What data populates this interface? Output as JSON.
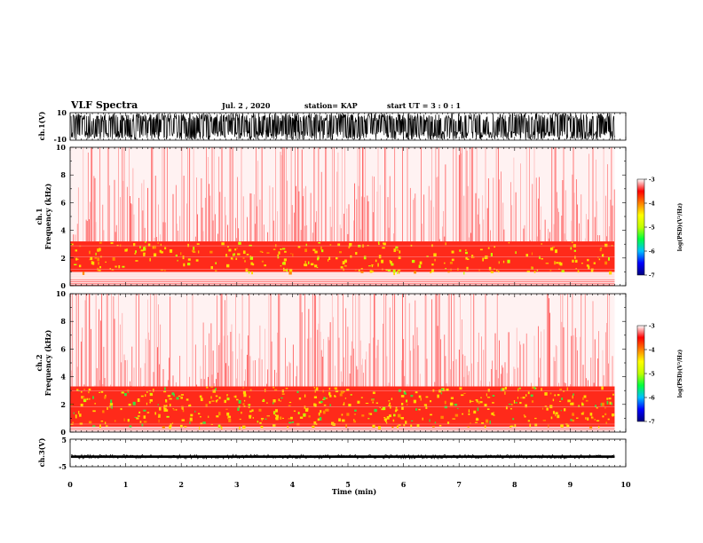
{
  "chart_data": {
    "type": "heatmap",
    "header": {
      "title": "VLF Spectra",
      "date": "Jul. 2 , 2020",
      "station": "station= KAP",
      "start": "start UT =  3 : 0  : 1"
    },
    "xlabel": "Time  (min)",
    "xlim": [
      0,
      10
    ],
    "xticks": [
      "0",
      "1",
      "2",
      "3",
      "4",
      "5",
      "6",
      "7",
      "8",
      "9",
      "10"
    ],
    "data_end_min": 9.8,
    "panels": [
      {
        "kind": "waveform",
        "ylabel": "ch.1(V)",
        "ylim": [
          -10,
          10
        ],
        "yticks": [
          "10",
          "-10"
        ],
        "amplitude": "full-scale noise"
      },
      {
        "kind": "spectrogram",
        "ylabel_top": "ch.1",
        "ylabel": "Frequency  (kHz)",
        "ylim": [
          0,
          10
        ],
        "yticks": [
          "10",
          "8",
          "6",
          "4",
          "2",
          "0"
        ],
        "band_khz": [
          1.0,
          3.2
        ]
      },
      {
        "kind": "spectrogram",
        "ylabel_top": "ch.2",
        "ylabel": "Frequency  (kHz)",
        "ylim": [
          0,
          10
        ],
        "yticks": [
          "10",
          "8",
          "6",
          "4",
          "2",
          "0"
        ],
        "band_khz": [
          0.4,
          3.3
        ]
      },
      {
        "kind": "waveform",
        "ylabel": "ch.3(V)",
        "ylim": [
          -5,
          5
        ],
        "yticks": [
          "5",
          "-5"
        ],
        "amplitude": "approx. -1.3 V trace"
      }
    ],
    "colorbar": {
      "label": "log(PSD)(V²/Hz)",
      "range": [
        -7,
        -3
      ],
      "ticks": [
        "-3",
        "-4",
        "-5",
        "-6",
        "-7"
      ],
      "colors": [
        "#000080",
        "#0000ff",
        "#00c0ff",
        "#00ff40",
        "#c0ff00",
        "#ffff00",
        "#ff8000",
        "#ff0000",
        "#ffffff"
      ]
    }
  }
}
